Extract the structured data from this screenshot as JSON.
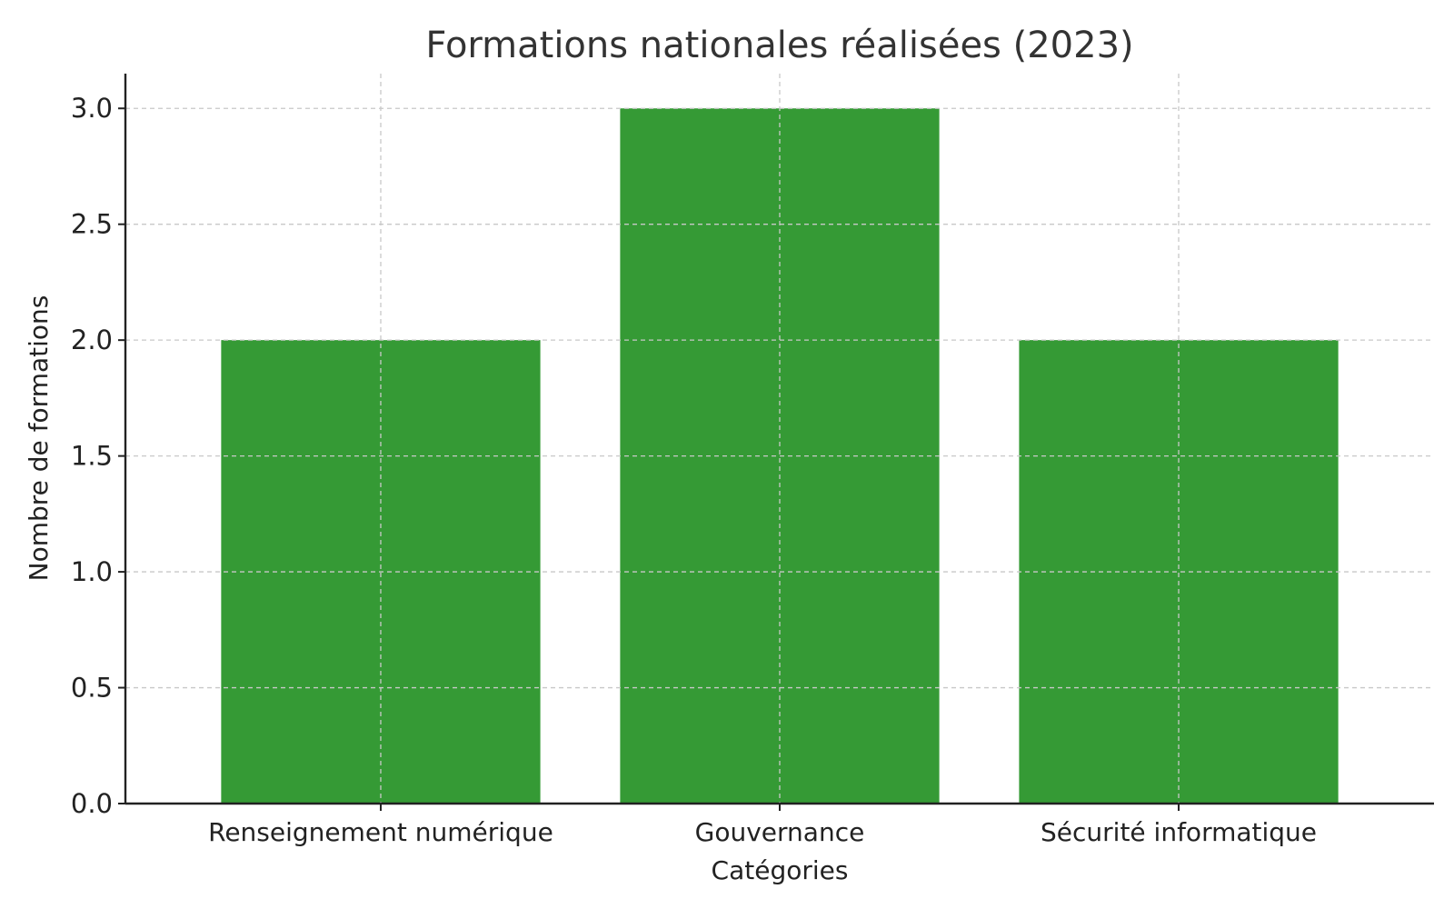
{
  "chart_data": {
    "type": "bar",
    "title": "Formations nationales réalisées (2023)",
    "xlabel": "Catégories",
    "ylabel": "Nombre de formations",
    "categories": [
      "Renseignement numérique",
      "Gouvernance",
      "Sécurité informatique"
    ],
    "values": [
      2,
      3,
      2
    ],
    "ylim": [
      0,
      3.15
    ],
    "yticks": [
      "0.0",
      "0.5",
      "1.0",
      "1.5",
      "2.0",
      "2.5",
      "3.0"
    ],
    "grid": true,
    "bar_color": "#359a35",
    "legend": "none"
  }
}
